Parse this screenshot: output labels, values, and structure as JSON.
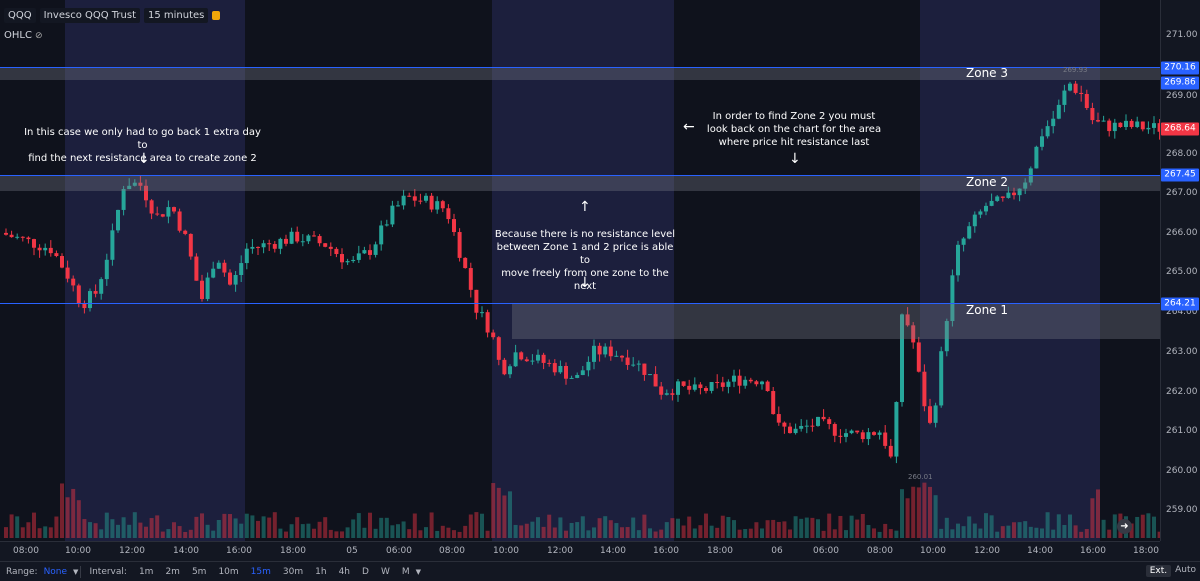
{
  "header": {
    "symbol": "QQQ",
    "name": "Invesco QQQ Trust",
    "interval": "15 minutes",
    "ohlc_label": "OHLC"
  },
  "price_axis": {
    "labels": [
      "271.00",
      "269.00",
      "268.00",
      "267.00",
      "266.00",
      "265.00",
      "264.00",
      "263.00",
      "262.00",
      "261.00",
      "260.00",
      "259.00"
    ],
    "tags": [
      {
        "text": "270.16",
        "color": "#2962ff"
      },
      {
        "text": "269.86",
        "color": "#2962ff"
      },
      {
        "text": "268.64",
        "color": "#f23645"
      },
      {
        "text": "267.45",
        "color": "#2962ff"
      },
      {
        "text": "264.21",
        "color": "#2962ff"
      }
    ]
  },
  "time_axis": [
    "08:00",
    "10:00",
    "12:00",
    "14:00",
    "16:00",
    "18:00",
    "05",
    "06:00",
    "08:00",
    "10:00",
    "12:00",
    "14:00",
    "16:00",
    "18:00",
    "06",
    "06:00",
    "08:00",
    "10:00",
    "12:00",
    "14:00",
    "16:00",
    "18:00"
  ],
  "zones": {
    "zone1": "Zone 1",
    "zone2": "Zone 2",
    "zone3": "Zone 3"
  },
  "annotations": {
    "left": "In this case we only had to go back 1 extra day to\nfind the next resistance area to create zone 2",
    "middle": "Because there is no resistance level\nbetween Zone 1 and 2 price is able to\nmove freely from one zone to the next",
    "right": "In order to find Zone 2 you must\nlook back on the chart for the area\nwhere price hit resistance last"
  },
  "price_marks": {
    "high": "269.93",
    "low": "260.01"
  },
  "bottom_bar": {
    "range_label": "Range:",
    "range_value": "None",
    "interval_label": "Interval:",
    "intervals": [
      "1m",
      "2m",
      "5m",
      "10m",
      "15m",
      "30m",
      "1h",
      "4h",
      "D",
      "W",
      "M"
    ],
    "active_interval": "15m",
    "ext": "Ext.",
    "auto": "Auto"
  },
  "colors": {
    "up": "#26a69a",
    "down": "#f23645",
    "zone_line": "#2962ff"
  }
}
